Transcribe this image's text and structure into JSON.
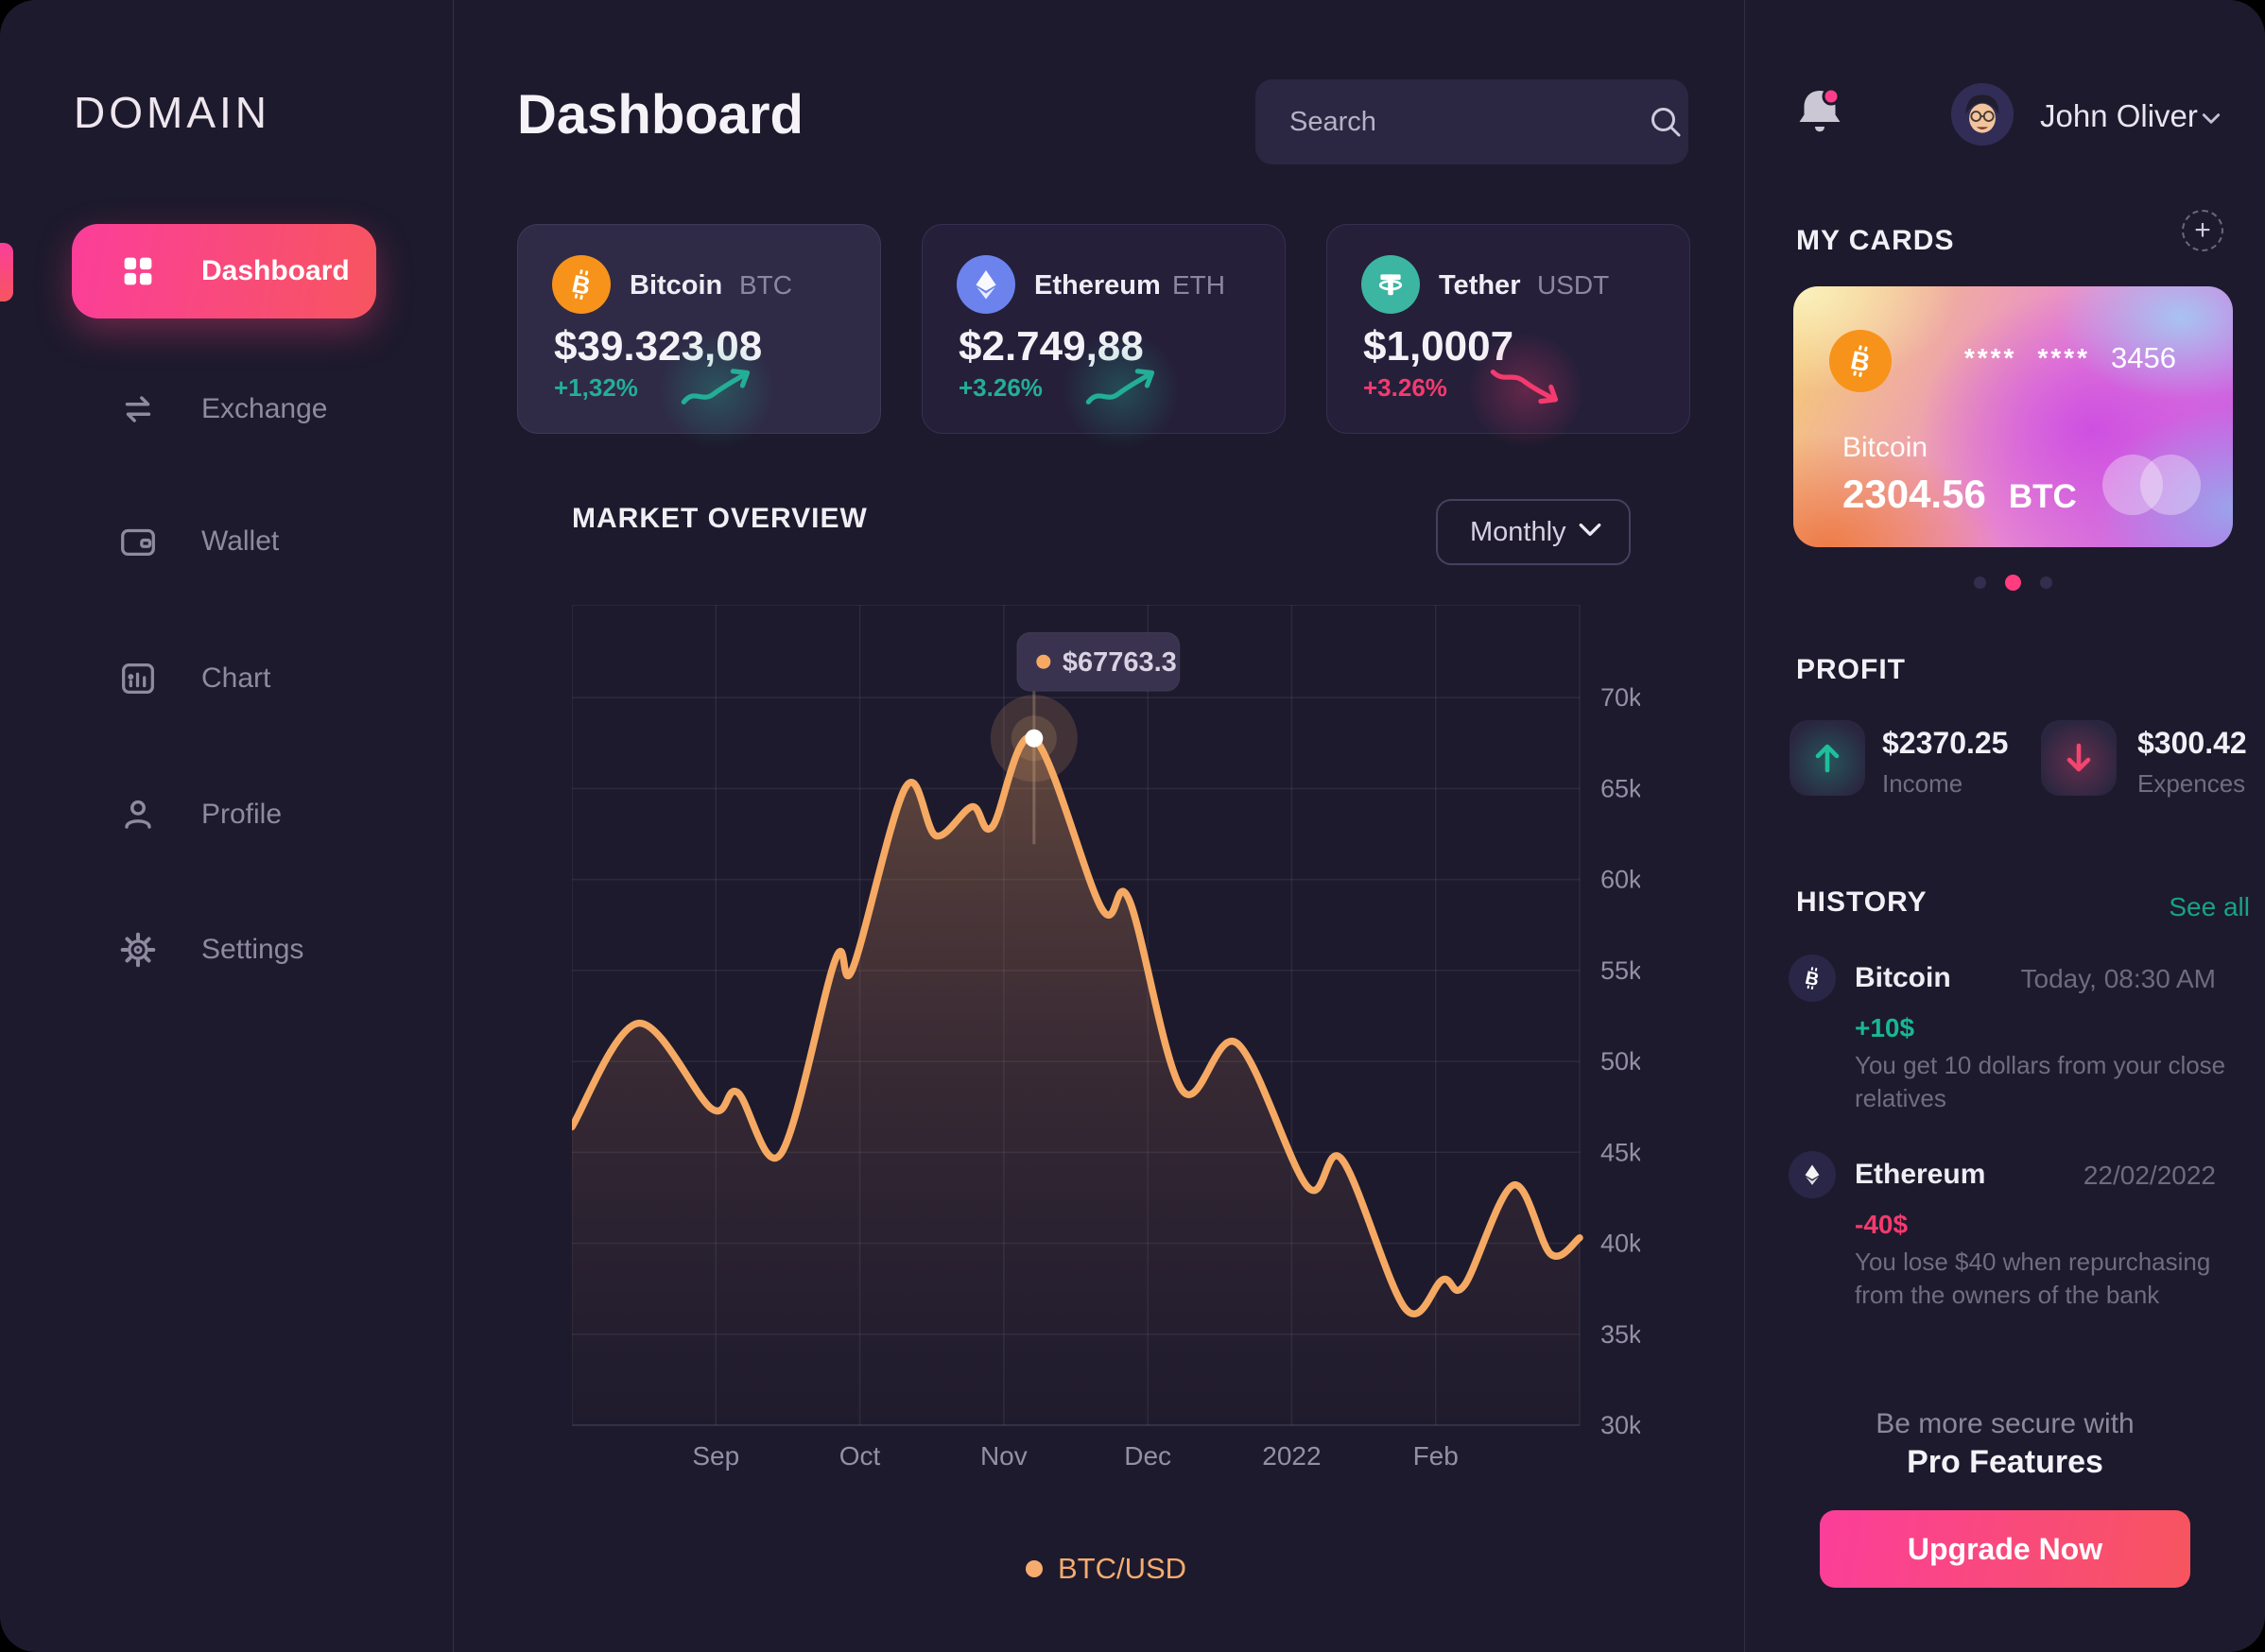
{
  "colors": {
    "accent_pink": "#FB3E9A",
    "accent_coral": "#F7555F",
    "teal_up": "#23AE97",
    "pink_down": "#F43A6E",
    "line_orange": "#F5A963",
    "green_link": "#16A385",
    "notification_dot": "#FF3D8A",
    "active_pager_dot": "#FF3D7F",
    "bitcoin_orange": "#F7931A",
    "ethereum_blue": "#6C83EE",
    "tether_teal": "#3CB5A2"
  },
  "brand": {
    "name": "DOMAIN"
  },
  "sidebar": {
    "items": [
      {
        "label": "Dashboard",
        "active": true
      },
      {
        "label": "Exchange",
        "active": false
      },
      {
        "label": "Wallet",
        "active": false
      },
      {
        "label": "Chart",
        "active": false
      },
      {
        "label": "Profile",
        "active": false
      },
      {
        "label": "Settings",
        "active": false
      }
    ]
  },
  "header": {
    "title": "Dashboard",
    "search_placeholder": "Search",
    "user": {
      "name": "John Oliver"
    }
  },
  "crypto_cards": [
    {
      "name": "Bitcoin",
      "ticker": "BTC",
      "price": "$39.323,08",
      "change": "+1,32%",
      "direction": "up"
    },
    {
      "name": "Ethereum",
      "ticker": "ETH",
      "price": "$2.749,88",
      "change": "+3.26%",
      "direction": "up"
    },
    {
      "name": "Tether",
      "ticker": "USDT",
      "price": "$1,0007",
      "change": "+3.26%",
      "direction": "down"
    }
  ],
  "market_overview": {
    "title": "MARKET OVERVIEW",
    "period": "Monthly",
    "legend": "BTC/USD"
  },
  "chart_data": {
    "type": "area",
    "title": "MARKET OVERVIEW",
    "series": [
      {
        "name": "BTC/USD",
        "color": "#F5A963",
        "unit": "USD thousands (k)",
        "points": [
          [
            0.0,
            46.4
          ],
          [
            0.46,
            52.1
          ],
          [
            0.97,
            47.4
          ],
          [
            1.15,
            48.3
          ],
          [
            1.45,
            44.9
          ],
          [
            1.83,
            55.6
          ],
          [
            1.95,
            55.1
          ],
          [
            2.32,
            65.1
          ],
          [
            2.53,
            62.4
          ],
          [
            2.78,
            64.0
          ],
          [
            2.92,
            62.9
          ],
          [
            3.21,
            67.763
          ],
          [
            3.68,
            58.4
          ],
          [
            3.87,
            58.9
          ],
          [
            4.24,
            48.4
          ],
          [
            4.62,
            51.0
          ],
          [
            5.11,
            43.1
          ],
          [
            5.35,
            44.6
          ],
          [
            5.79,
            36.4
          ],
          [
            6.05,
            38.0
          ],
          [
            6.2,
            37.7
          ],
          [
            6.54,
            43.2
          ],
          [
            6.8,
            39.4
          ],
          [
            7.0,
            40.3
          ]
        ]
      }
    ],
    "x_domain": [
      0,
      7
    ],
    "x_ticks": [
      {
        "m": 1,
        "label": "Sep"
      },
      {
        "m": 2,
        "label": "Oct"
      },
      {
        "m": 3,
        "label": "Nov"
      },
      {
        "m": 4,
        "label": "Dec"
      },
      {
        "m": 5,
        "label": "2022"
      },
      {
        "m": 6,
        "label": "Feb"
      }
    ],
    "y_domain": [
      30,
      75.1
    ],
    "y_ticks": [
      30,
      35,
      40,
      45,
      50,
      55,
      60,
      65,
      70
    ],
    "y_tick_suffix": "k",
    "grid": true,
    "legend_position": "bottom",
    "highlight": {
      "m": 3.21,
      "value_usd": 67763.3,
      "label": "$67763.3"
    }
  },
  "my_cards": {
    "title": "MY CARDS",
    "add_label": "+",
    "card": {
      "masked_groups": [
        "****",
        "****"
      ],
      "last_digits": "3456",
      "coin": "Bitcoin",
      "balance": "2304.56",
      "unit": "BTC"
    },
    "pager": {
      "count": 3,
      "active": 1
    }
  },
  "profit": {
    "title": "PROFIT",
    "income": {
      "amount": "$2370.25",
      "label": "Income"
    },
    "expenses": {
      "amount": "$300.42",
      "label": "Expences"
    }
  },
  "history": {
    "title": "HISTORY",
    "see_all": "See all",
    "items": [
      {
        "coin": "Bitcoin",
        "time": "Today, 08:30 AM",
        "amount": "+10$",
        "direction": "up",
        "description": "You get 10 dollars from your close relatives"
      },
      {
        "coin": "Ethereum",
        "time": "22/02/2022",
        "amount": "-40$",
        "direction": "down",
        "description": "You lose $40 when repurchasing from the owners of the bank"
      }
    ]
  },
  "promo": {
    "line1": "Be more secure with",
    "line2": "Pro Features",
    "button": "Upgrade Now"
  }
}
